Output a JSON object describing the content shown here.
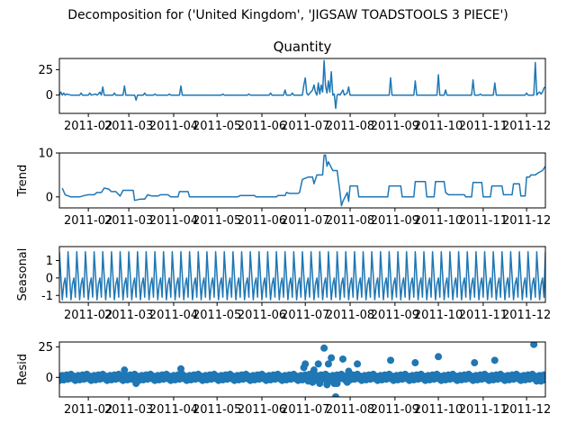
{
  "figure_title": "Decomposition for ('United Kingdom', 'JIGSAW TOADSTOOLS 3 PIECE')",
  "chart_data": [
    {
      "type": "line",
      "name": "observed",
      "title": "Quantity",
      "ylabel": "",
      "ylim": [
        -18,
        36
      ],
      "yticks": [
        0,
        25
      ],
      "xlim": [
        0,
        336
      ],
      "xticks": [
        {
          "x": 20,
          "label": "2011-02"
        },
        {
          "x": 48,
          "label": "2011-03"
        },
        {
          "x": 79,
          "label": "2011-04"
        },
        {
          "x": 109,
          "label": "2011-05"
        },
        {
          "x": 140,
          "label": "2011-06"
        },
        {
          "x": 170,
          "label": "2011-07"
        },
        {
          "x": 201,
          "label": "2011-08"
        },
        {
          "x": 232,
          "label": "2011-09"
        },
        {
          "x": 262,
          "label": "2011-10"
        },
        {
          "x": 293,
          "label": "2011-11"
        },
        {
          "x": 323,
          "label": "2011-12"
        }
      ],
      "color": "#1f77b4",
      "points": [
        [
          0,
          0
        ],
        [
          1,
          3
        ],
        [
          2,
          0
        ],
        [
          3,
          2
        ],
        [
          4,
          0
        ],
        [
          5,
          1
        ],
        [
          8,
          0
        ],
        [
          14,
          0
        ],
        [
          15,
          2
        ],
        [
          16,
          0
        ],
        [
          20,
          0
        ],
        [
          21,
          2
        ],
        [
          22,
          0
        ],
        [
          25,
          1
        ],
        [
          26,
          0
        ],
        [
          27,
          1
        ],
        [
          28,
          3
        ],
        [
          29,
          0
        ],
        [
          30,
          8
        ],
        [
          31,
          0
        ],
        [
          37,
          0
        ],
        [
          38,
          2
        ],
        [
          39,
          0
        ],
        [
          44,
          0
        ],
        [
          45,
          9
        ],
        [
          46,
          0
        ],
        [
          52,
          0
        ],
        [
          53,
          -5
        ],
        [
          54,
          0
        ],
        [
          58,
          0
        ],
        [
          59,
          2
        ],
        [
          60,
          0
        ],
        [
          65,
          0
        ],
        [
          66,
          1
        ],
        [
          67,
          0
        ],
        [
          75,
          0
        ],
        [
          76,
          1
        ],
        [
          77,
          0
        ],
        [
          83,
          0
        ],
        [
          84,
          9
        ],
        [
          85,
          0
        ],
        [
          112,
          0
        ],
        [
          113,
          1
        ],
        [
          114,
          0
        ],
        [
          130,
          0
        ],
        [
          131,
          1
        ],
        [
          132,
          0
        ],
        [
          145,
          0
        ],
        [
          146,
          2
        ],
        [
          147,
          0
        ],
        [
          155,
          0
        ],
        [
          156,
          5
        ],
        [
          157,
          0
        ],
        [
          160,
          0
        ],
        [
          161,
          2
        ],
        [
          162,
          0
        ],
        [
          168,
          0
        ],
        [
          169,
          10
        ],
        [
          170,
          17
        ],
        [
          171,
          2
        ],
        [
          172,
          0
        ],
        [
          175,
          5
        ],
        [
          176,
          10
        ],
        [
          177,
          3
        ],
        [
          178,
          0
        ],
        [
          179,
          12
        ],
        [
          180,
          1
        ],
        [
          181,
          10
        ],
        [
          182,
          3
        ],
        [
          183,
          34
        ],
        [
          184,
          9
        ],
        [
          185,
          2
        ],
        [
          186,
          14
        ],
        [
          187,
          3
        ],
        [
          188,
          23
        ],
        [
          189,
          0
        ],
        [
          190,
          1
        ],
        [
          191,
          -13
        ],
        [
          192,
          0
        ],
        [
          193,
          1
        ],
        [
          194,
          0
        ],
        [
          196,
          5
        ],
        [
          197,
          0
        ],
        [
          199,
          2
        ],
        [
          200,
          8
        ],
        [
          201,
          0
        ],
        [
          228,
          0
        ],
        [
          229,
          17
        ],
        [
          230,
          0
        ],
        [
          245,
          0
        ],
        [
          246,
          14
        ],
        [
          247,
          0
        ],
        [
          261,
          0
        ],
        [
          262,
          20
        ],
        [
          263,
          0
        ],
        [
          266,
          0
        ],
        [
          267,
          5
        ],
        [
          268,
          0
        ],
        [
          285,
          0
        ],
        [
          286,
          15
        ],
        [
          287,
          0
        ],
        [
          290,
          0
        ],
        [
          291,
          1
        ],
        [
          292,
          0
        ],
        [
          300,
          0
        ],
        [
          301,
          12
        ],
        [
          302,
          0
        ],
        [
          322,
          0
        ],
        [
          323,
          2
        ],
        [
          324,
          0
        ],
        [
          328,
          0
        ],
        [
          329,
          32
        ],
        [
          330,
          0
        ],
        [
          331,
          2
        ],
        [
          332,
          3
        ],
        [
          333,
          1
        ],
        [
          334,
          3
        ],
        [
          335,
          7
        ],
        [
          336,
          8
        ]
      ]
    },
    {
      "type": "line",
      "name": "trend",
      "title": "",
      "ylabel": "Trend",
      "ylim": [
        -2.5,
        10
      ],
      "yticks": [
        0,
        10
      ],
      "color": "#1f77b4",
      "points": [
        [
          2,
          2
        ],
        [
          4,
          0.5
        ],
        [
          8,
          0
        ],
        [
          14,
          0
        ],
        [
          17,
          0.3
        ],
        [
          20,
          0.5
        ],
        [
          24,
          0.5
        ],
        [
          26,
          1
        ],
        [
          29,
          1
        ],
        [
          31,
          2
        ],
        [
          34,
          1.8
        ],
        [
          36,
          1.2
        ],
        [
          39,
          1.2
        ],
        [
          42,
          0.2
        ],
        [
          44,
          1.5
        ],
        [
          51,
          1.5
        ],
        [
          52,
          -0.8
        ],
        [
          56,
          -0.5
        ],
        [
          59,
          -0.5
        ],
        [
          61,
          0.5
        ],
        [
          64,
          0.2
        ],
        [
          68,
          0.2
        ],
        [
          70,
          0.5
        ],
        [
          75,
          0.5
        ],
        [
          77,
          0
        ],
        [
          82,
          0
        ],
        [
          83,
          1.2
        ],
        [
          89,
          1.2
        ],
        [
          90,
          0
        ],
        [
          123,
          0
        ],
        [
          125,
          0.3
        ],
        [
          135,
          0.3
        ],
        [
          136,
          0
        ],
        [
          150,
          0
        ],
        [
          151,
          0.3
        ],
        [
          156,
          0.3
        ],
        [
          157,
          1
        ],
        [
          159,
          0.8
        ],
        [
          165,
          0.8
        ],
        [
          166,
          1
        ],
        [
          168,
          4
        ],
        [
          172,
          4.5
        ],
        [
          175,
          4.5
        ],
        [
          176,
          3
        ],
        [
          178,
          5
        ],
        [
          182,
          5
        ],
        [
          183,
          9.5
        ],
        [
          184,
          9.5
        ],
        [
          185,
          7
        ],
        [
          186,
          8
        ],
        [
          189,
          6
        ],
        [
          192,
          6
        ],
        [
          194,
          1
        ],
        [
          195,
          -2
        ],
        [
          196,
          -1
        ],
        [
          199,
          1
        ],
        [
          200,
          -1
        ],
        [
          201,
          2.5
        ],
        [
          206,
          2.5
        ],
        [
          207,
          0
        ],
        [
          227,
          0
        ],
        [
          228,
          2.5
        ],
        [
          236,
          2.5
        ],
        [
          237,
          0
        ],
        [
          245,
          0
        ],
        [
          246,
          3.5
        ],
        [
          253,
          3.5
        ],
        [
          254,
          0
        ],
        [
          259,
          0
        ],
        [
          260,
          3.5
        ],
        [
          266,
          3.5
        ],
        [
          267,
          1
        ],
        [
          269,
          0.5
        ],
        [
          280,
          0.5
        ],
        [
          281,
          0
        ],
        [
          285,
          0
        ],
        [
          286,
          3.3
        ],
        [
          292,
          3.3
        ],
        [
          293,
          0
        ],
        [
          298,
          0
        ],
        [
          299,
          2.5
        ],
        [
          306,
          2.5
        ],
        [
          307,
          0.5
        ],
        [
          313,
          0.5
        ],
        [
          314,
          3
        ],
        [
          318,
          3
        ],
        [
          319,
          0.2
        ],
        [
          322,
          0.2
        ],
        [
          323,
          4.5
        ],
        [
          325,
          4.5
        ],
        [
          326,
          5
        ],
        [
          329,
          5
        ],
        [
          331,
          5.5
        ],
        [
          334,
          6
        ],
        [
          336,
          7
        ]
      ]
    },
    {
      "type": "line",
      "name": "seasonal",
      "title": "",
      "ylabel": "Seasonal",
      "ylim": [
        -1.4,
        1.8
      ],
      "yticks": [
        -1,
        0,
        1
      ],
      "color": "#1f77b4",
      "period": 6,
      "pattern": [
        1.5,
        0.1,
        -1.25,
        -0.35,
        0.0,
        -1.1
      ],
      "n_points": 337
    },
    {
      "type": "scatter",
      "name": "resid",
      "title": "",
      "ylabel": "Resid",
      "ylim": [
        -16,
        29
      ],
      "yticks": [
        0,
        25
      ],
      "color": "#1f77b4",
      "zero_line": true,
      "points": [
        [
          3,
          -2
        ],
        [
          45,
          6
        ],
        [
          53,
          -5
        ],
        [
          84,
          7
        ],
        [
          169,
          8
        ],
        [
          170,
          11
        ],
        [
          172,
          -3
        ],
        [
          175,
          -4
        ],
        [
          176,
          6
        ],
        [
          179,
          11
        ],
        [
          180,
          -5
        ],
        [
          183,
          24
        ],
        [
          185,
          -6
        ],
        [
          186,
          11
        ],
        [
          188,
          16
        ],
        [
          190,
          -5
        ],
        [
          191,
          -16
        ],
        [
          192,
          -5
        ],
        [
          196,
          15
        ],
        [
          199,
          -4
        ],
        [
          200,
          5
        ],
        [
          206,
          11
        ],
        [
          229,
          14
        ],
        [
          246,
          12
        ],
        [
          262,
          17
        ],
        [
          287,
          12
        ],
        [
          301,
          14
        ],
        [
          328,
          27
        ],
        [
          330,
          -3
        ],
        [
          333,
          -3
        ],
        [
          335,
          -2
        ]
      ],
      "baseline_noise": true
    }
  ]
}
